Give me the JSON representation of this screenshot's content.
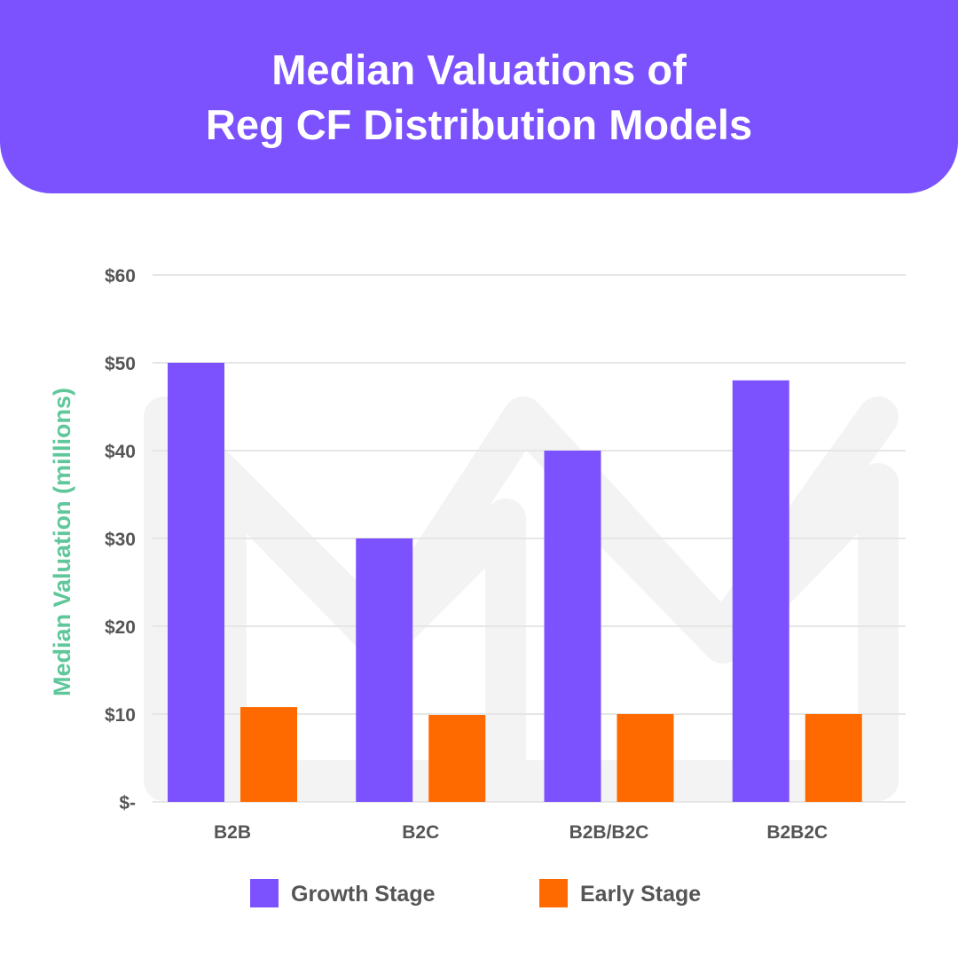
{
  "header": {
    "title_line1": "Median Valuations of",
    "title_line2": "Reg CF Distribution Models"
  },
  "colors": {
    "header_bg": "#7b52fd",
    "growth": "#7b52fd",
    "early": "#ff6a00",
    "grid": "#e6e6e6",
    "watermark": "#f3f3f3",
    "axis_title": "#5fc79a",
    "label": "#555555"
  },
  "chart_data": {
    "type": "bar",
    "title": "Median Valuations of Reg CF Distribution Models",
    "ylabel": "Median Valuation (millions)",
    "xlabel": "",
    "categories": [
      "B2B",
      "B2C",
      "B2B/B2C",
      "B2B2C"
    ],
    "series": [
      {
        "name": "Growth Stage",
        "color": "#7b52fd",
        "values": [
          50,
          30,
          40,
          48
        ]
      },
      {
        "name": "Early Stage",
        "color": "#ff6a00",
        "values": [
          10.8,
          9.9,
          10,
          10
        ]
      }
    ],
    "ylim": [
      0,
      60
    ],
    "yticks": [
      0,
      10,
      20,
      30,
      40,
      50,
      60
    ],
    "ytick_labels": [
      "$-",
      "$10",
      "$20",
      "$30",
      "$40",
      "$50",
      "$60"
    ],
    "grid": true,
    "legend_position": "bottom"
  }
}
